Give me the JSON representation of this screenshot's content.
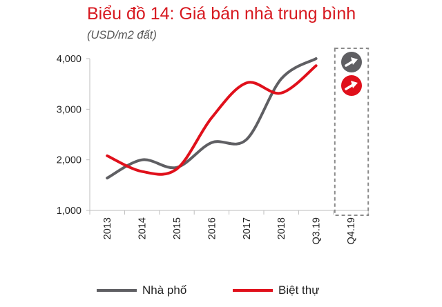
{
  "chart_data": {
    "type": "line",
    "title": "Biểu đồ 14: Giá bán nhà trung bình",
    "subtitle": "(USD/m2 đất)",
    "categories": [
      "2013",
      "2014",
      "2015",
      "2016",
      "2017",
      "2018",
      "Q3.19",
      "Q4.19"
    ],
    "y_ticks": [
      "1,000",
      "2,000",
      "3,000",
      "4,000"
    ],
    "ylim": [
      1000,
      4000
    ],
    "series": [
      {
        "name": "Nhà phố",
        "color": "#5f5f63",
        "values": [
          1640,
          2000,
          1850,
          2340,
          2400,
          3600,
          4000,
          null
        ],
        "forecast_arrow": "up"
      },
      {
        "name": "Biệt thự",
        "color": "#e0101b",
        "values": [
          2080,
          1770,
          1820,
          2830,
          3520,
          3320,
          3860,
          null
        ],
        "forecast_arrow": "up"
      }
    ],
    "forecast_category": "Q4.19",
    "forecast_box": "dashed",
    "grid": false,
    "legend_position": "bottom"
  }
}
